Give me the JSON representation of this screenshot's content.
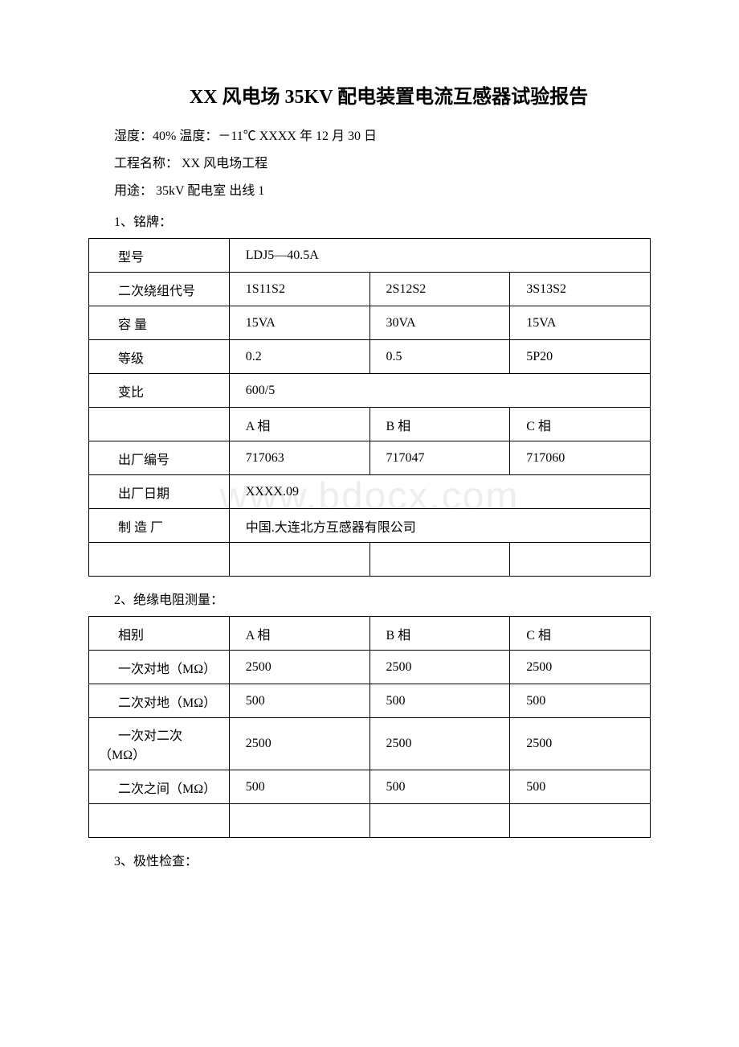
{
  "title": "XX 风电场 35KV 配电装置电流互感器试验报告",
  "meta": {
    "conditions": "湿度：40% 温度：－11℃ XXXX 年 12 月 30 日",
    "project": "工程名称：  XX 风电场工程",
    "usage": "用途： 35kV 配电室 出线 1"
  },
  "section1": {
    "title": "1、铭牌：",
    "rows": {
      "model_label": "型号",
      "model_value": "LDJ5—40.5A",
      "winding_label": "二次绕组代号",
      "winding_a": "1S11S2",
      "winding_b": "2S12S2",
      "winding_c": "3S13S2",
      "capacity_label": "容 量",
      "capacity_a": "15VA",
      "capacity_b": "30VA",
      "capacity_c": "15VA",
      "grade_label": "等级",
      "grade_a": "0.2",
      "grade_b": "0.5",
      "grade_c": "5P20",
      "ratio_label": "变比",
      "ratio_value": "600/5",
      "phase_a": "A 相",
      "phase_b": "B 相",
      "phase_c": "C 相",
      "serial_label": "出厂编号",
      "serial_a": "717063",
      "serial_b": "717047",
      "serial_c": "717060",
      "date_label": "出厂日期",
      "date_value": "XXXX.09",
      "mfr_label": "制 造 厂",
      "mfr_value": "中国.大连北方互感器有限公司"
    }
  },
  "section2": {
    "title": "2、绝缘电阻测量：",
    "rows": {
      "phase_label": "相别",
      "phase_a": "A 相",
      "phase_b": "B 相",
      "phase_c": "C 相",
      "r1_label": "一次对地（MΩ）",
      "r1_a": "2500",
      "r1_b": "2500",
      "r1_c": "2500",
      "r2_label": "二次对地（MΩ）",
      "r2_a": "500",
      "r2_b": "500",
      "r2_c": "500",
      "r3_label": "一次对二次（MΩ）",
      "r3_a": "2500",
      "r3_b": "2500",
      "r3_c": "2500",
      "r4_label": "二次之间（MΩ）",
      "r4_a": "500",
      "r4_b": "500",
      "r4_c": "500"
    }
  },
  "section3": {
    "title": "3、极性检查："
  },
  "watermark": "www.bdocx.com"
}
